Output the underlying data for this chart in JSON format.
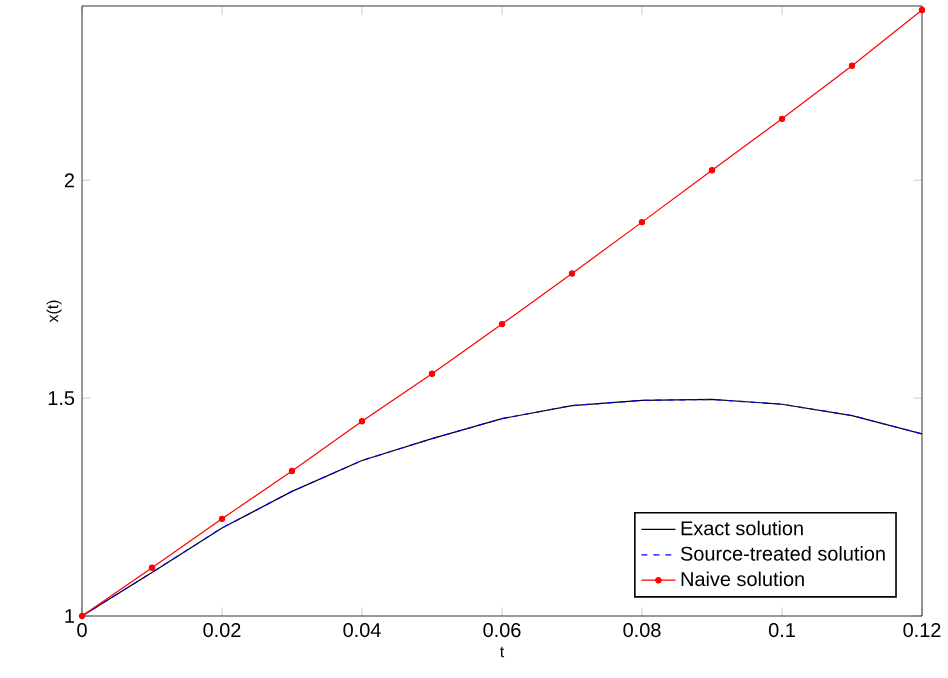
{
  "chart_data": {
    "type": "line",
    "xlabel": "t",
    "ylabel": "x(t)",
    "x": [
      0,
      0.01,
      0.02,
      0.03,
      0.04,
      0.05,
      0.06,
      0.07,
      0.08,
      0.09,
      0.1,
      0.11,
      0.12
    ],
    "series": [
      {
        "name": "Exact solution",
        "color": "#000000",
        "line_style": "solid",
        "marker": "none",
        "values": [
          1,
          1.1,
          1.202,
          1.286,
          1.357,
          1.407,
          1.453,
          1.483,
          1.495,
          1.497,
          1.486,
          1.46,
          1.418
        ]
      },
      {
        "name": "Source-treated solution",
        "color": "#0000ff",
        "line_style": "dashed",
        "marker": "none",
        "values": [
          1,
          1.1,
          1.202,
          1.286,
          1.357,
          1.407,
          1.453,
          1.483,
          1.495,
          1.497,
          1.486,
          1.46,
          1.418
        ]
      },
      {
        "name": "Naive solution",
        "color": "#ff0000",
        "line_style": "solid",
        "marker": "circle",
        "values": [
          1,
          1.111,
          1.223,
          1.333,
          1.447,
          1.556,
          1.67,
          1.786,
          1.904,
          2.023,
          2.141,
          2.263,
          2.391
        ]
      }
    ],
    "xlim": [
      0,
      0.12
    ],
    "ylim": [
      1,
      2.4
    ],
    "xticks": [
      0,
      0.02,
      0.04,
      0.06,
      0.08,
      0.1,
      0.12
    ],
    "yticks": [
      1,
      1.5,
      2
    ],
    "legend": "bottom right"
  }
}
